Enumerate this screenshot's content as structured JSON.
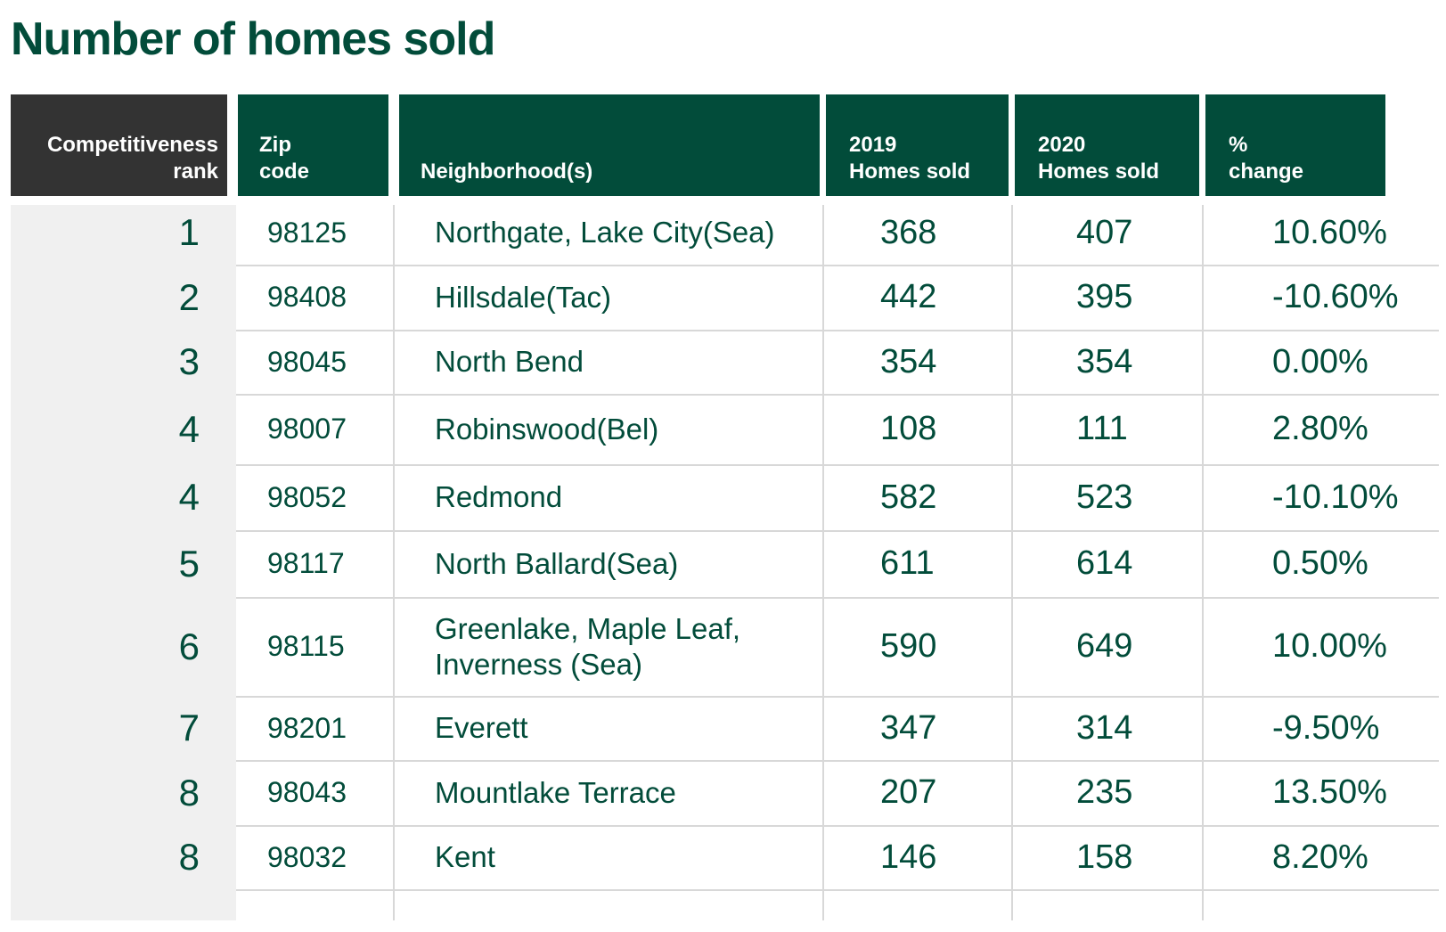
{
  "title": "Number of homes sold",
  "headers": {
    "rank": [
      "Competitiveness",
      "rank"
    ],
    "zip": [
      "Zip",
      "code"
    ],
    "neighborhood": [
      "Neighborhood(s)"
    ],
    "sold2019": [
      "2019",
      "Homes sold"
    ],
    "sold2020": [
      "2020",
      "Homes sold"
    ],
    "change": [
      "%",
      "change"
    ]
  },
  "rows": [
    {
      "rank": "1",
      "zip": "98125",
      "name": "Northgate, Lake City",
      "city": "(Sea)",
      "sold2019": "368",
      "sold2020": "407",
      "change": "10.60"
    },
    {
      "rank": "2",
      "zip": "98408",
      "name": "Hillsdale",
      "city": "(Tac)",
      "sold2019": "442",
      "sold2020": "395",
      "change": "-10.60"
    },
    {
      "rank": "3",
      "zip": "98045",
      "name": "North Bend",
      "city": "",
      "sold2019": "354",
      "sold2020": "354",
      "change": "0.00"
    },
    {
      "rank": "4",
      "zip": "98007",
      "name": "Robinswood",
      "city": "(Bel)",
      "sold2019": "108",
      "sold2020": "111",
      "change": "2.80"
    },
    {
      "rank": "4",
      "zip": "98052",
      "name": "Redmond",
      "city": "",
      "sold2019": "582",
      "sold2020": "523",
      "change": "-10.10"
    },
    {
      "rank": "5",
      "zip": "98117",
      "name": "North Ballard",
      "city": "(Sea)",
      "sold2019": "611",
      "sold2020": "614",
      "change": "0.50"
    },
    {
      "rank": "6",
      "zip": "98115",
      "name": "Greenlake, Maple Leaf, Inverness",
      "city": "(Sea)",
      "sold2019": "590",
      "sold2020": "649",
      "change": "10.00"
    },
    {
      "rank": "7",
      "zip": "98201",
      "name": "Everett",
      "city": "",
      "sold2019": "347",
      "sold2020": "314",
      "change": "-9.50"
    },
    {
      "rank": "8",
      "zip": "98043",
      "name": "Mountlake Terrace",
      "city": "",
      "sold2019": "207",
      "sold2020": "235",
      "change": "13.50"
    },
    {
      "rank": "8",
      "zip": "98032",
      "name": "Kent",
      "city": "",
      "sold2019": "146",
      "sold2020": "158",
      "change": "8.20"
    }
  ],
  "percent_symbol": "%",
  "colors": {
    "brand_green": "#024c3a",
    "header_dark": "#333333",
    "rank_bg": "#f0f0f0",
    "grid": "#d8d8d8"
  }
}
